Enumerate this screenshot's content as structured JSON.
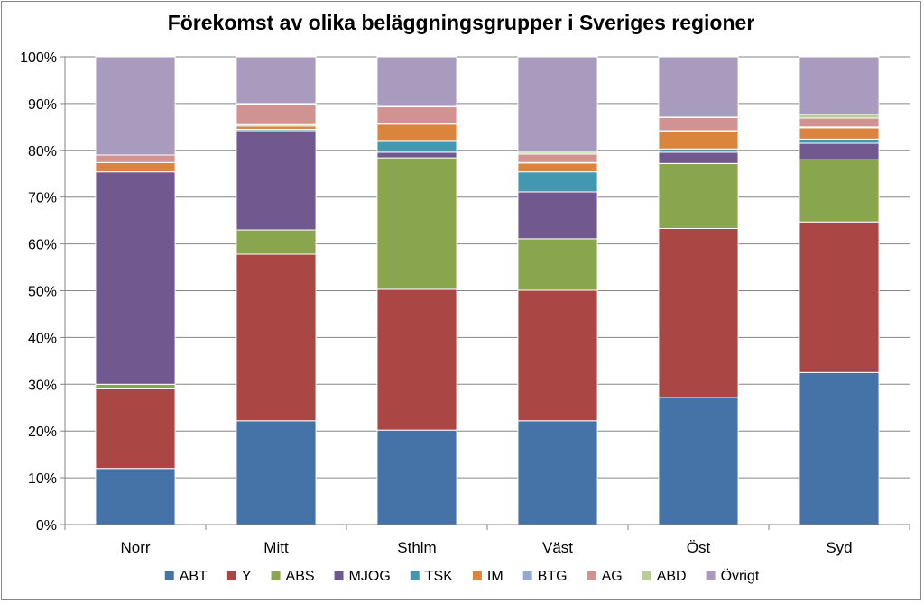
{
  "chart_data": {
    "type": "bar",
    "stacked": true,
    "percent": true,
    "title": "Förekomst av olika beläggningsgrupper i Sveriges regioner",
    "xlabel": "",
    "ylabel": "",
    "ylim": [
      0,
      100
    ],
    "yticks": [
      "0%",
      "10%",
      "20%",
      "30%",
      "40%",
      "50%",
      "60%",
      "70%",
      "80%",
      "90%",
      "100%"
    ],
    "grid": true,
    "legend_position": "bottom",
    "categories": [
      "Norr",
      "Mitt",
      "Sthlm",
      "Väst",
      "Öst",
      "Syd"
    ],
    "series": [
      {
        "name": "ABT",
        "color": "#4572A7",
        "values": [
          12.0,
          22.2,
          20.2,
          22.2,
          27.2,
          32.5
        ]
      },
      {
        "name": "Y",
        "color": "#AA4643",
        "values": [
          17.0,
          35.6,
          30.1,
          27.9,
          36.1,
          32.2
        ]
      },
      {
        "name": "ABS",
        "color": "#89A54E",
        "values": [
          1.0,
          5.2,
          28.1,
          11.0,
          13.9,
          13.3
        ]
      },
      {
        "name": "MJOG",
        "color": "#71588F",
        "values": [
          45.4,
          21.2,
          1.2,
          10.0,
          2.4,
          3.5
        ]
      },
      {
        "name": "TSK",
        "color": "#4198AF",
        "values": [
          0.0,
          0.3,
          2.5,
          4.3,
          0.7,
          0.9
        ]
      },
      {
        "name": "IM",
        "color": "#DB843D",
        "values": [
          2.0,
          0.7,
          3.5,
          1.9,
          3.8,
          2.4
        ]
      },
      {
        "name": "BTG",
        "color": "#93A9CF",
        "values": [
          0.0,
          0.3,
          0.1,
          0.1,
          0.1,
          0.2
        ]
      },
      {
        "name": "AG",
        "color": "#D19392",
        "values": [
          1.6,
          4.3,
          3.6,
          1.8,
          2.8,
          1.9
        ]
      },
      {
        "name": "ABD",
        "color": "#B9CD96",
        "values": [
          0.0,
          0.2,
          0.1,
          0.4,
          0.1,
          0.8
        ]
      },
      {
        "name": "Övrigt",
        "color": "#A99BBD",
        "values": [
          21.0,
          10.0,
          10.6,
          20.4,
          12.9,
          12.3
        ]
      }
    ]
  }
}
